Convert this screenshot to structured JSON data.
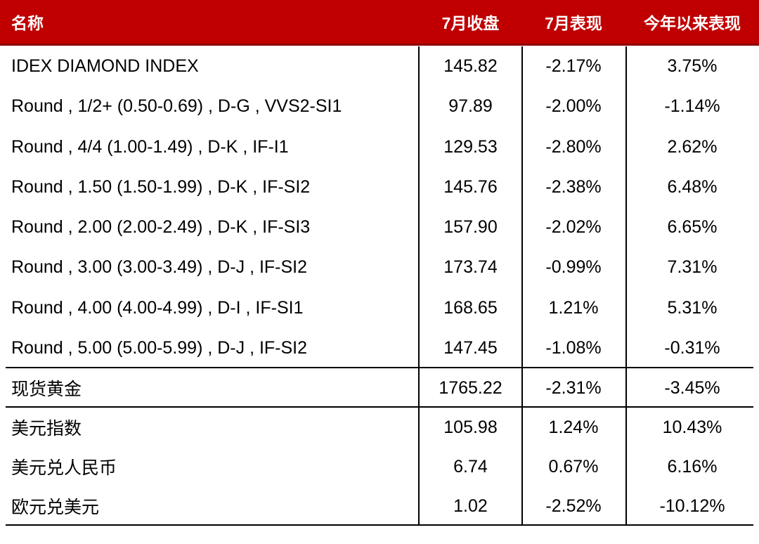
{
  "table": {
    "header": {
      "name": "名称",
      "july_close": "7月收盘",
      "july_performance": "7月表现",
      "ytd_performance": "今年以来表现"
    },
    "rows": [
      {
        "name": "IDEX DIAMOND INDEX",
        "close": "145.82",
        "july": "-2.17%",
        "ytd": "3.75%"
      },
      {
        "name": "Round , 1/2+ (0.50-0.69) , D-G , VVS2-SI1",
        "close": "97.89",
        "july": "-2.00%",
        "ytd": "-1.14%"
      },
      {
        "name": "Round , 4/4 (1.00-1.49) , D-K , IF-I1",
        "close": "129.53",
        "july": "-2.80%",
        "ytd": "2.62%"
      },
      {
        "name": "Round , 1.50 (1.50-1.99) , D-K , IF-SI2",
        "close": "145.76",
        "july": "-2.38%",
        "ytd": "6.48%"
      },
      {
        "name": "Round , 2.00 (2.00-2.49) , D-K , IF-SI3",
        "close": "157.90",
        "july": "-2.02%",
        "ytd": "6.65%"
      },
      {
        "name": "Round , 3.00 (3.00-3.49) , D-J , IF-SI2",
        "close": "173.74",
        "july": "-0.99%",
        "ytd": "7.31%"
      },
      {
        "name": "Round , 4.00 (4.00-4.99) , D-I , IF-SI1",
        "close": "168.65",
        "july": "1.21%",
        "ytd": "5.31%"
      },
      {
        "name": "Round , 5.00 (5.00-5.99) , D-J , IF-SI2",
        "close": "147.45",
        "july": "-1.08%",
        "ytd": "-0.31%"
      },
      {
        "name": "现货黄金",
        "close": "1765.22",
        "july": "-2.31%",
        "ytd": "-3.45%"
      },
      {
        "name": "美元指数",
        "close": "105.98",
        "july": "1.24%",
        "ytd": "10.43%"
      },
      {
        "name": "美元兑人民币",
        "close": "6.74",
        "july": "0.67%",
        "ytd": "6.16%"
      },
      {
        "name": "欧元兑美元",
        "close": "1.02",
        "july": "-2.52%",
        "ytd": "-10.12%"
      }
    ]
  },
  "colors": {
    "header_bg": "#c00000",
    "header_border": "#8f0000",
    "header_text": "#ffffff",
    "body_text": "#000000",
    "grid_line": "#000000",
    "background": "#ffffff"
  },
  "chart_data": {
    "type": "table",
    "title": "",
    "columns": [
      "名称",
      "7月收盘",
      "7月表现",
      "今年以来表现"
    ],
    "rows": [
      [
        "IDEX DIAMOND INDEX",
        145.82,
        "-2.17%",
        "3.75%"
      ],
      [
        "Round , 1/2+ (0.50-0.69) , D-G , VVS2-SI1",
        97.89,
        "-2.00%",
        "-1.14%"
      ],
      [
        "Round , 4/4 (1.00-1.49) , D-K , IF-I1",
        129.53,
        "-2.80%",
        "2.62%"
      ],
      [
        "Round , 1.50 (1.50-1.99) , D-K , IF-SI2",
        145.76,
        "-2.38%",
        "6.48%"
      ],
      [
        "Round , 2.00 (2.00-2.49) , D-K , IF-SI3",
        157.9,
        "-2.02%",
        "6.65%"
      ],
      [
        "Round , 3.00 (3.00-3.49) , D-J , IF-SI2",
        173.74,
        "-0.99%",
        "7.31%"
      ],
      [
        "Round , 4.00 (4.00-4.99) , D-I , IF-SI1",
        168.65,
        "1.21%",
        "5.31%"
      ],
      [
        "Round , 5.00 (5.00-5.99) , D-J , IF-SI2",
        147.45,
        "-1.08%",
        "-0.31%"
      ],
      [
        "现货黄金",
        1765.22,
        "-2.31%",
        "-3.45%"
      ],
      [
        "美元指数",
        105.98,
        "1.24%",
        "10.43%"
      ],
      [
        "美元兑人民币",
        6.74,
        "0.67%",
        "6.16%"
      ],
      [
        "欧元兑美元",
        1.02,
        "-2.52%",
        "-10.12%"
      ]
    ],
    "row_groups": [
      {
        "label": "diamond-indices",
        "row_indices": [
          0,
          1,
          2,
          3,
          4,
          5,
          6,
          7
        ]
      },
      {
        "label": "spot-gold",
        "row_indices": [
          8
        ]
      },
      {
        "label": "currencies",
        "row_indices": [
          9,
          10,
          11
        ]
      }
    ]
  }
}
